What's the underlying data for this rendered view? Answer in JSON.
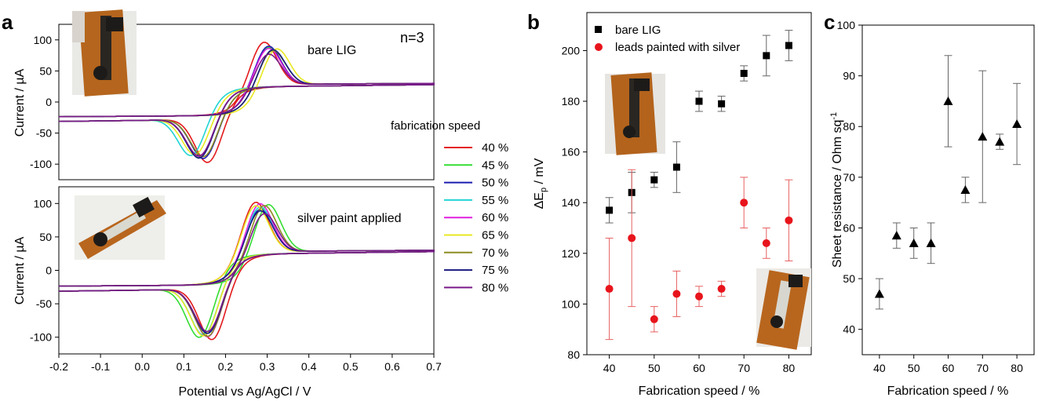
{
  "panel_labels": {
    "a": "a",
    "b": "b",
    "c": "c"
  },
  "panel_a": {
    "top_annotation": "bare LIG",
    "n_label": "n=3",
    "bottom_annotation": "silver paint applied",
    "legend_title": "fabrication speed",
    "ylabel_top": "Current / µA",
    "ylabel_bottom": "Current / µA",
    "xlabel": "Potential vs Ag/AgCl / V"
  },
  "panel_b": {
    "xlabel": "Fabrication speed / %",
    "ylabel_main": "ΔE",
    "ylabel_sub": "p",
    "ylabel_unit": " / mV"
  },
  "panel_c": {
    "xlabel": "Fabrication speed / %",
    "ylabel": "Sheet resistance / Ohm sq"
  },
  "chart_data": [
    {
      "type": "line",
      "panel": "a-top",
      "title": "bare LIG",
      "xlabel": "",
      "ylabel": "Current / µA",
      "xlim": [
        -0.2,
        0.7
      ],
      "ylim": [
        -125,
        125
      ],
      "x_ticks": [
        -0.2,
        -0.1,
        0.0,
        0.1,
        0.2,
        0.3,
        0.4,
        0.5,
        0.6,
        0.7
      ],
      "y_ticks": [
        -100,
        -50,
        0,
        50,
        100
      ],
      "curve_params": [
        {
          "name": "40 %",
          "color": "#e31a1c",
          "ipa": 107,
          "epa": 0.29,
          "ipc": -109,
          "epc": 0.16
        },
        {
          "name": "45 %",
          "color": "#33dd33",
          "ipa": 95,
          "epa": 0.3,
          "ipc": -97,
          "epc": 0.14
        },
        {
          "name": "50 %",
          "color": "#1c1cb0",
          "ipa": 98,
          "epa": 0.3,
          "ipc": -100,
          "epc": 0.15
        },
        {
          "name": "55 %",
          "color": "#22d4d4",
          "ipa": 90,
          "epa": 0.31,
          "ipc": -93,
          "epc": 0.12
        },
        {
          "name": "60 %",
          "color": "#e020e0",
          "ipa": 93,
          "epa": 0.3,
          "ipc": -95,
          "epc": 0.14
        },
        {
          "name": "65 %",
          "color": "#e8e822",
          "ipa": 92,
          "epa": 0.32,
          "ipc": -91,
          "epc": 0.13
        },
        {
          "name": "70 %",
          "color": "#8c8c22",
          "ipa": 88,
          "epa": 0.31,
          "ipc": -96,
          "epc": 0.15
        },
        {
          "name": "75 %",
          "color": "#1a1a80",
          "ipa": 90,
          "epa": 0.31,
          "ipc": -99,
          "epc": 0.14
        },
        {
          "name": "80 %",
          "color": "#7a1a8a",
          "ipa": 80,
          "epa": 0.3,
          "ipc": -94,
          "epc": 0.14
        }
      ]
    },
    {
      "type": "line",
      "panel": "a-bottom",
      "title": "silver paint applied",
      "xlabel": "Potential vs Ag/AgCl / V",
      "ylabel": "Current / µA",
      "xlim": [
        -0.2,
        0.7
      ],
      "ylim": [
        -125,
        125
      ],
      "x_ticks": [
        -0.2,
        -0.1,
        0.0,
        0.1,
        0.2,
        0.3,
        0.4,
        0.5,
        0.6,
        0.7
      ],
      "y_ticks": [
        -100,
        -50,
        0,
        50,
        100
      ],
      "curve_params": [
        {
          "name": "40 %",
          "color": "#e31a1c",
          "ipa": 115,
          "epa": 0.27,
          "ipc": -118,
          "epc": 0.17
        },
        {
          "name": "45 %",
          "color": "#33dd33",
          "ipa": 110,
          "epa": 0.3,
          "ipc": -113,
          "epc": 0.14
        },
        {
          "name": "50 %",
          "color": "#1c1cb0",
          "ipa": 100,
          "epa": 0.28,
          "ipc": -104,
          "epc": 0.16
        },
        {
          "name": "55 %",
          "color": "#22d4d4",
          "ipa": 105,
          "epa": 0.28,
          "ipc": -108,
          "epc": 0.15
        },
        {
          "name": "60 %",
          "color": "#e020e0",
          "ipa": 112,
          "epa": 0.28,
          "ipc": -112,
          "epc": 0.16
        },
        {
          "name": "65 %",
          "color": "#e8e822",
          "ipa": 108,
          "epa": 0.27,
          "ipc": -110,
          "epc": 0.15
        },
        {
          "name": "70 %",
          "color": "#8c8c22",
          "ipa": 108,
          "epa": 0.29,
          "ipc": -111,
          "epc": 0.16
        },
        {
          "name": "75 %",
          "color": "#1a1a80",
          "ipa": 97,
          "epa": 0.28,
          "ipc": -105,
          "epc": 0.16
        },
        {
          "name": "80 %",
          "color": "#7a1a8a",
          "ipa": 91,
          "epa": 0.29,
          "ipc": -101,
          "epc": 0.16
        }
      ]
    },
    {
      "type": "scatter",
      "panel": "b",
      "xlabel": "Fabrication speed / %",
      "ylabel": "ΔEp / mV",
      "xlim": [
        35,
        85
      ],
      "ylim": [
        80,
        215
      ],
      "x_ticks": [
        40,
        50,
        60,
        70,
        80
      ],
      "y_ticks": [
        80,
        100,
        120,
        140,
        160,
        180,
        200
      ],
      "x": [
        40,
        45,
        50,
        55,
        60,
        65,
        70,
        75,
        80
      ],
      "series": [
        {
          "name": "bare LIG",
          "marker": "square",
          "color": "#000000",
          "values": [
            137,
            144,
            149,
            154,
            180,
            179,
            191,
            198,
            202
          ],
          "errors": [
            5,
            8,
            3,
            10,
            4,
            3,
            3,
            8,
            6
          ]
        },
        {
          "name": "leads painted with silver",
          "marker": "circle",
          "color": "#e8141c",
          "values": [
            106,
            126,
            94,
            104,
            103,
            106,
            140,
            124,
            133
          ],
          "errors": [
            20,
            27,
            5,
            9,
            4,
            3,
            10,
            6,
            16
          ]
        }
      ]
    },
    {
      "type": "scatter",
      "panel": "c",
      "xlabel": "Fabrication speed / %",
      "ylabel": "Sheet resistance / Ohm sq⁻¹",
      "xlim": [
        35,
        85
      ],
      "ylim": [
        35,
        100
      ],
      "x_ticks": [
        40,
        50,
        60,
        70,
        80
      ],
      "y_ticks": [
        40,
        50,
        60,
        70,
        80,
        90,
        100
      ],
      "x": [
        40,
        45,
        50,
        55,
        60,
        65,
        70,
        75,
        80
      ],
      "series": [
        {
          "name": "",
          "marker": "triangle",
          "color": "#000000",
          "values": [
            47,
            58.5,
            57,
            57,
            85,
            67.5,
            78,
            77,
            80.5
          ],
          "errors": [
            3,
            2.5,
            3,
            4,
            9,
            2.5,
            13,
            1.5,
            8
          ]
        }
      ]
    }
  ]
}
